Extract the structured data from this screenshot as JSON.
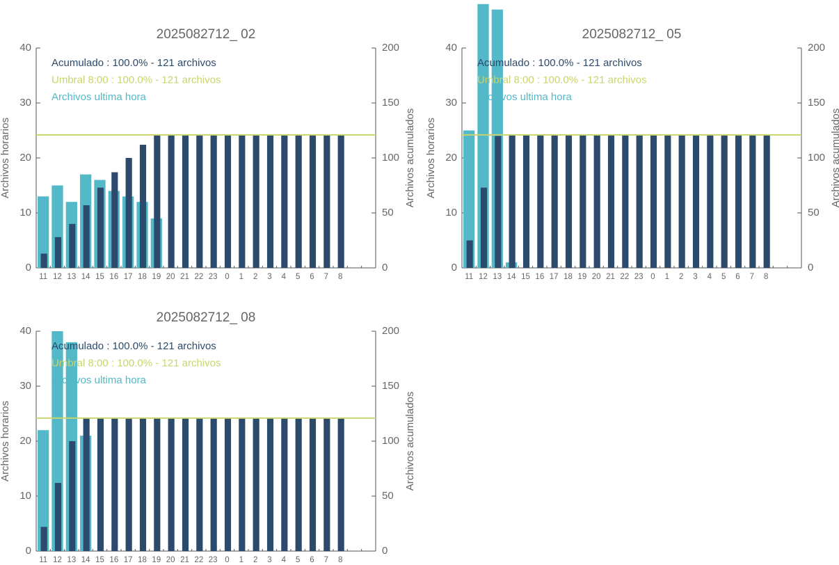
{
  "chart_data": [
    {
      "type": "bar",
      "title": "2025082712_ 02",
      "categories": [
        "11",
        "12",
        "13",
        "14",
        "15",
        "16",
        "17",
        "18",
        "19",
        "20",
        "21",
        "22",
        "23",
        "0",
        "1",
        "2",
        "3",
        "4",
        "5",
        "6",
        "7",
        "8"
      ],
      "series": [
        {
          "name": "Archivos ultima hora",
          "color": "#53b9c8",
          "values": [
            13,
            15,
            12,
            17,
            16,
            14,
            13,
            12,
            9,
            0,
            0,
            0,
            0,
            0,
            0,
            0,
            0,
            0,
            0,
            0,
            0,
            0
          ]
        },
        {
          "name": "Acumulado : 100.0% - 121 archivos",
          "color": "#2c4a6b",
          "axis": "y2",
          "values": [
            13,
            28,
            40,
            57,
            73,
            87,
            100,
            112,
            121,
            121,
            121,
            121,
            121,
            121,
            121,
            121,
            121,
            121,
            121,
            121,
            121,
            121
          ]
        }
      ],
      "threshold": {
        "label": "Umbral 8:00 : 100.0% - 121 archivos",
        "value": 121,
        "color": "#c9d46b",
        "axis": "y2"
      },
      "ylabel": "Archivos horarios",
      "y2label": "Archivos acumulados",
      "ylim": [
        0,
        40
      ],
      "yticks": [
        0,
        10,
        20,
        30,
        40
      ],
      "y2lim": [
        0,
        200
      ],
      "y2ticks": [
        0,
        50,
        100,
        150,
        200
      ]
    },
    {
      "type": "bar",
      "title": "2025082712_ 05",
      "categories": [
        "11",
        "12",
        "13",
        "14",
        "15",
        "16",
        "17",
        "18",
        "19",
        "20",
        "21",
        "22",
        "23",
        "0",
        "1",
        "2",
        "3",
        "4",
        "5",
        "6",
        "7",
        "8"
      ],
      "series": [
        {
          "name": "Archivos ultima hora",
          "color": "#53b9c8",
          "values": [
            25,
            48,
            47,
            1,
            0,
            0,
            0,
            0,
            0,
            0,
            0,
            0,
            0,
            0,
            0,
            0,
            0,
            0,
            0,
            0,
            0,
            0
          ]
        },
        {
          "name": "Acumulado : 100.0% - 121 archivos",
          "color": "#2c4a6b",
          "axis": "y2",
          "values": [
            25,
            73,
            120,
            121,
            121,
            121,
            121,
            121,
            121,
            121,
            121,
            121,
            121,
            121,
            121,
            121,
            121,
            121,
            121,
            121,
            121,
            121
          ]
        }
      ],
      "threshold": {
        "label": "Umbral 8:00 : 100.0% - 121 archivos",
        "value": 121,
        "color": "#c9d46b",
        "axis": "y2"
      },
      "ylabel": "Archivos horarios",
      "y2label": "Archivos acumulados",
      "ylim": [
        0,
        40
      ],
      "yticks": [
        0,
        10,
        20,
        30,
        40
      ],
      "y2lim": [
        0,
        200
      ],
      "y2ticks": [
        0,
        50,
        100,
        150,
        200
      ]
    },
    {
      "type": "bar",
      "title": "2025082712_ 08",
      "categories": [
        "11",
        "12",
        "13",
        "14",
        "15",
        "16",
        "17",
        "18",
        "19",
        "20",
        "21",
        "22",
        "23",
        "0",
        "1",
        "2",
        "3",
        "4",
        "5",
        "6",
        "7",
        "8"
      ],
      "series": [
        {
          "name": "Archivos ultima hora",
          "color": "#53b9c8",
          "values": [
            22,
            40,
            38,
            21,
            0,
            0,
            0,
            0,
            0,
            0,
            0,
            0,
            0,
            0,
            0,
            0,
            0,
            0,
            0,
            0,
            0,
            0
          ]
        },
        {
          "name": "Acumulado : 100.0% - 121 archivos",
          "color": "#2c4a6b",
          "axis": "y2",
          "values": [
            22,
            62,
            100,
            121,
            121,
            121,
            121,
            121,
            121,
            121,
            121,
            121,
            121,
            121,
            121,
            121,
            121,
            121,
            121,
            121,
            121,
            121
          ]
        }
      ],
      "threshold": {
        "label": "Umbral 8:00 : 100.0% - 121 archivos",
        "value": 121,
        "color": "#c9d46b",
        "axis": "y2"
      },
      "ylabel": "Archivos horarios",
      "y2label": "Archivos acumulados",
      "ylim": [
        0,
        40
      ],
      "yticks": [
        0,
        10,
        20,
        30,
        40
      ],
      "y2lim": [
        0,
        200
      ],
      "y2ticks": [
        0,
        50,
        100,
        150,
        200
      ]
    }
  ]
}
